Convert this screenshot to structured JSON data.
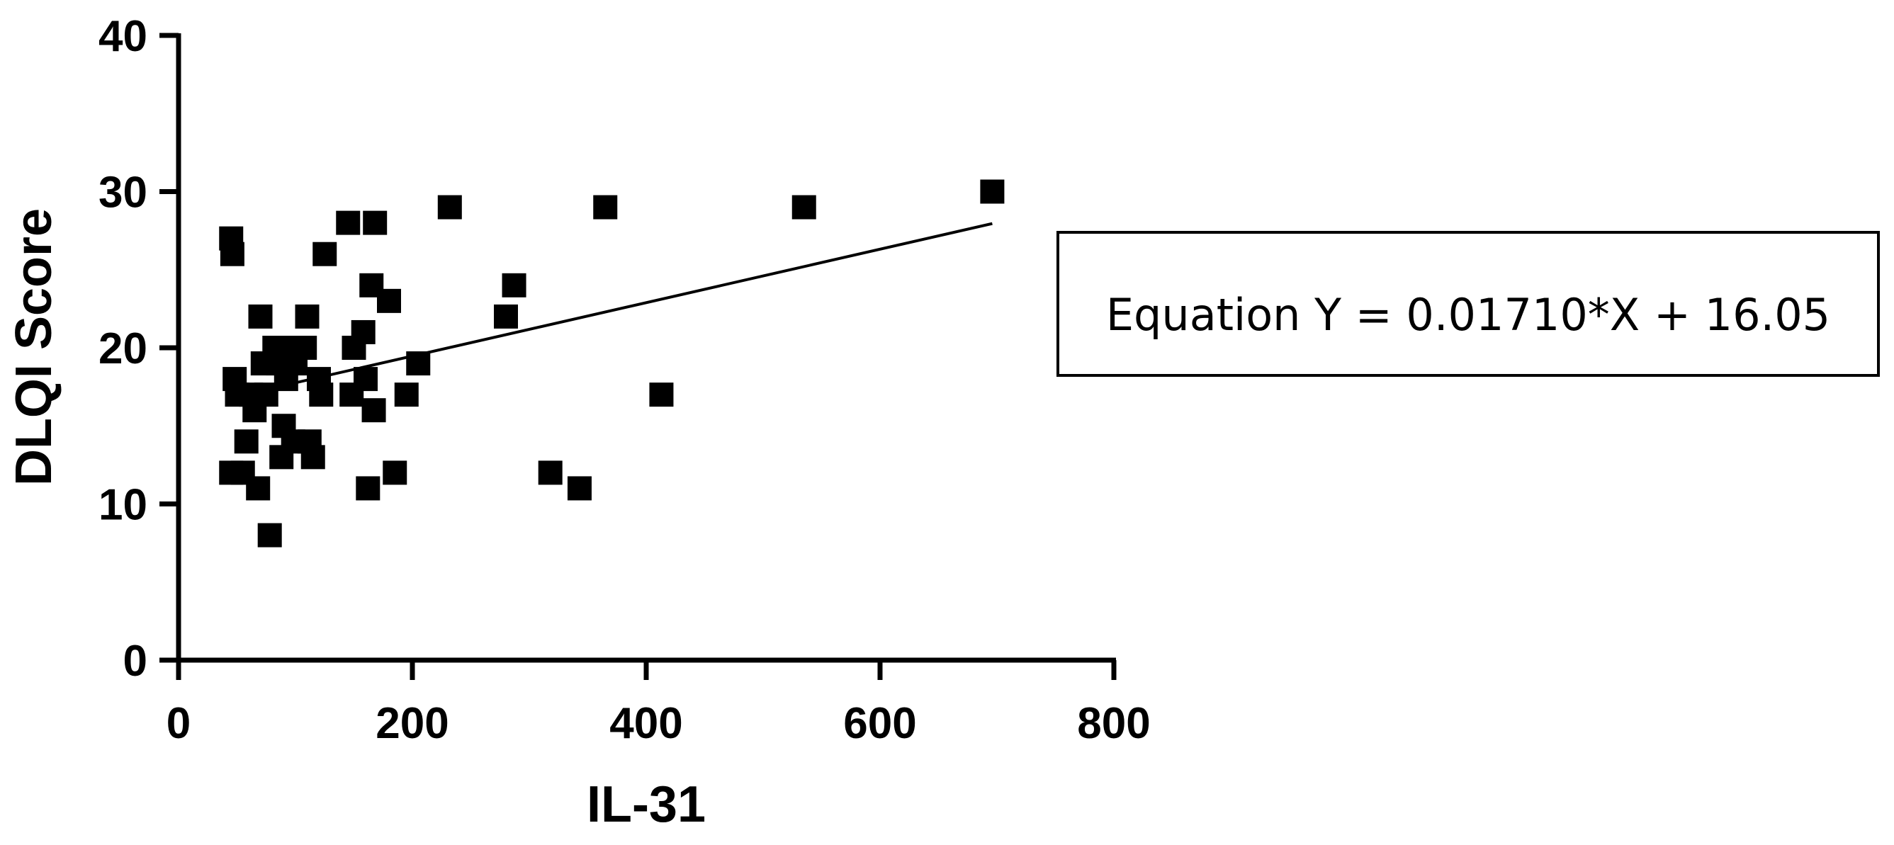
{
  "chart_data": {
    "type": "scatter",
    "title": "",
    "xlabel": "IL-31",
    "ylabel": "DLQI Score",
    "xlim": [
      0,
      800
    ],
    "ylim": [
      0,
      40
    ],
    "xticks": [
      0,
      200,
      400,
      600,
      800
    ],
    "yticks": [
      0,
      10,
      20,
      30,
      40
    ],
    "grid": false,
    "marker": "square",
    "marker_color": "#000000",
    "points": [
      {
        "x": 45,
        "y": 27
      },
      {
        "x": 46,
        "y": 26
      },
      {
        "x": 45,
        "y": 12
      },
      {
        "x": 48,
        "y": 18
      },
      {
        "x": 50,
        "y": 17
      },
      {
        "x": 55,
        "y": 12
      },
      {
        "x": 58,
        "y": 14
      },
      {
        "x": 62,
        "y": 17
      },
      {
        "x": 65,
        "y": 16
      },
      {
        "x": 68,
        "y": 11
      },
      {
        "x": 70,
        "y": 22
      },
      {
        "x": 72,
        "y": 19
      },
      {
        "x": 75,
        "y": 17
      },
      {
        "x": 78,
        "y": 8
      },
      {
        "x": 82,
        "y": 20
      },
      {
        "x": 85,
        "y": 19
      },
      {
        "x": 88,
        "y": 13
      },
      {
        "x": 90,
        "y": 15
      },
      {
        "x": 92,
        "y": 18
      },
      {
        "x": 95,
        "y": 20
      },
      {
        "x": 98,
        "y": 14
      },
      {
        "x": 100,
        "y": 19
      },
      {
        "x": 108,
        "y": 20
      },
      {
        "x": 110,
        "y": 22
      },
      {
        "x": 112,
        "y": 14
      },
      {
        "x": 115,
        "y": 13
      },
      {
        "x": 120,
        "y": 18
      },
      {
        "x": 122,
        "y": 17
      },
      {
        "x": 125,
        "y": 26
      },
      {
        "x": 145,
        "y": 28
      },
      {
        "x": 148,
        "y": 17
      },
      {
        "x": 150,
        "y": 20
      },
      {
        "x": 158,
        "y": 21
      },
      {
        "x": 160,
        "y": 18
      },
      {
        "x": 162,
        "y": 11
      },
      {
        "x": 165,
        "y": 24
      },
      {
        "x": 167,
        "y": 16
      },
      {
        "x": 168,
        "y": 28
      },
      {
        "x": 180,
        "y": 23
      },
      {
        "x": 185,
        "y": 12
      },
      {
        "x": 195,
        "y": 17
      },
      {
        "x": 205,
        "y": 19
      },
      {
        "x": 232,
        "y": 29
      },
      {
        "x": 280,
        "y": 22
      },
      {
        "x": 287,
        "y": 24
      },
      {
        "x": 318,
        "y": 12
      },
      {
        "x": 343,
        "y": 11
      },
      {
        "x": 365,
        "y": 29
      },
      {
        "x": 413,
        "y": 17
      },
      {
        "x": 535,
        "y": 29
      },
      {
        "x": 696,
        "y": 30
      }
    ],
    "regression": {
      "slope": 0.0171,
      "intercept": 16.05,
      "x_range": [
        45,
        696
      ],
      "line_color": "#000000"
    },
    "annotation": "Equation Y = 0.01710*X + 16.05"
  }
}
